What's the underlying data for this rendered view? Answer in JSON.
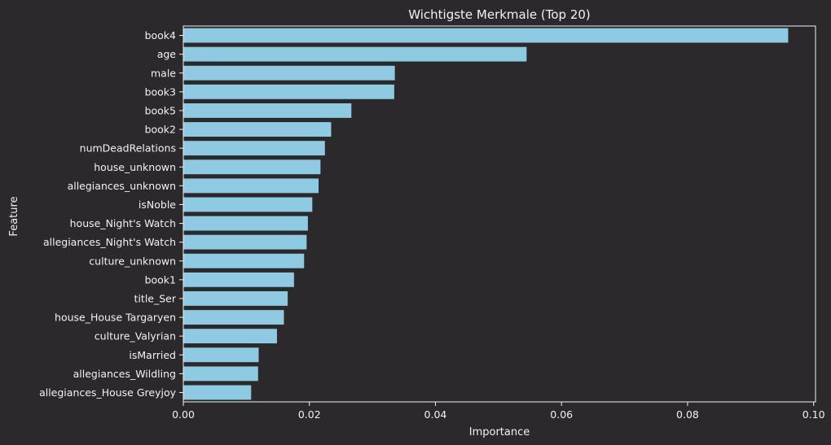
{
  "chart_data": {
    "type": "bar",
    "orientation": "horizontal",
    "title": "Wichtigste Merkmale (Top 20)",
    "xlabel": "Importance",
    "ylabel": "Feature",
    "categories": [
      "book4",
      "age",
      "male",
      "book3",
      "book5",
      "book2",
      "numDeadRelations",
      "house_unknown",
      "allegiances_unknown",
      "isNoble",
      "house_Night's Watch",
      "allegiances_Night's Watch",
      "culture_unknown",
      "book1",
      "title_Ser",
      "house_House Targaryen",
      "culture_Valyrian",
      "isMarried",
      "allegiances_Wildling",
      "allegiances_House Greyjoy"
    ],
    "values": [
      0.096,
      0.0545,
      0.0336,
      0.0335,
      0.0267,
      0.0235,
      0.0225,
      0.0218,
      0.0215,
      0.0205,
      0.0198,
      0.0196,
      0.0192,
      0.0176,
      0.0166,
      0.016,
      0.0149,
      0.012,
      0.0119,
      0.0108
    ],
    "xlim": [
      0,
      0.1003
    ],
    "xticks": [
      0.0,
      0.02,
      0.04,
      0.06,
      0.08,
      0.1
    ],
    "xtick_labels": [
      "0.00",
      "0.02",
      "0.04",
      "0.06",
      "0.08",
      "0.10"
    ],
    "grid": false,
    "legend": "none",
    "colors": {
      "background": "#2b292b",
      "bar": "#8ecae2",
      "bar_edge": "#2b292b",
      "axis": "#f2f2f2",
      "text": "#f2f2f2"
    }
  }
}
